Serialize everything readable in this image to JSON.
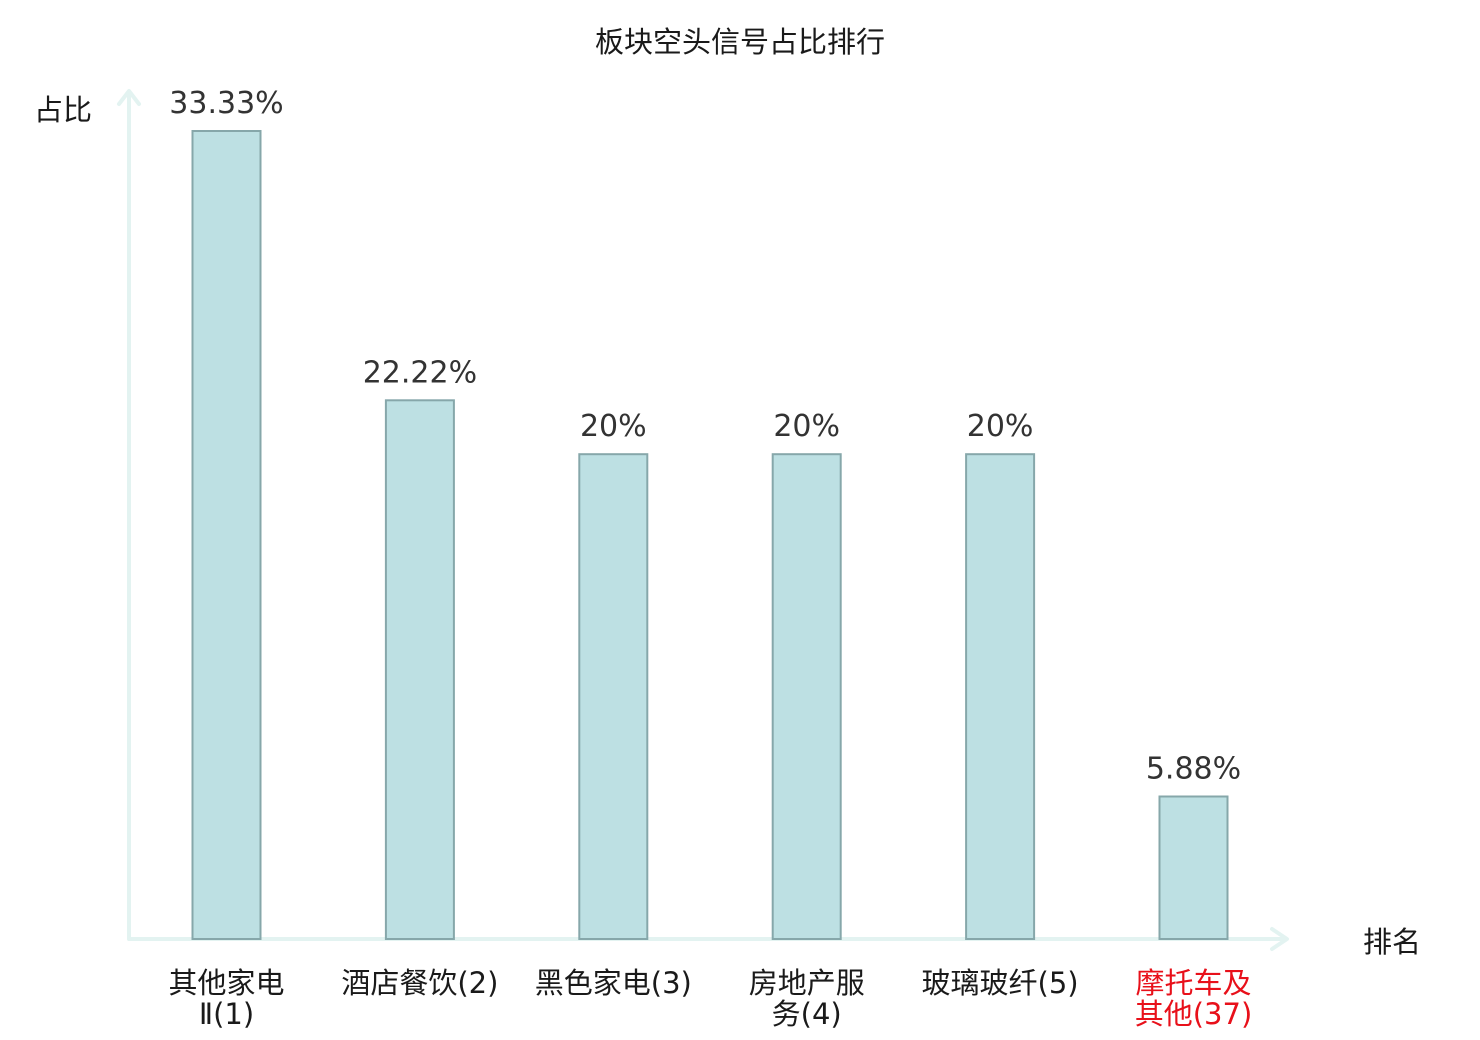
{
  "chart_data": {
    "type": "bar",
    "title": "板块空头信号占比排行",
    "ylabel": "占比",
    "xlabel": "排名",
    "ylim": [
      0,
      34
    ],
    "grid": false,
    "categories": [
      [
        "其他家电",
        "Ⅱ(1)"
      ],
      [
        "酒店餐饮(2)"
      ],
      [
        "黑色家电(3)"
      ],
      [
        "房地产服",
        "务(4)"
      ],
      [
        "玻璃玻纤(5)"
      ],
      [
        "摩托车及",
        "其他(37)"
      ]
    ],
    "values": [
      33.33,
      22.22,
      20,
      20,
      20,
      5.88
    ],
    "value_labels": [
      "33.33%",
      "22.22%",
      "20%",
      "20%",
      "20%",
      "5.88%"
    ],
    "label_colors": [
      "#1a1a1a",
      "#1a1a1a",
      "#1a1a1a",
      "#1a1a1a",
      "#1a1a1a",
      "#e8101a"
    ],
    "colors": {
      "bar_fill": "#bde0e3",
      "bar_stroke": "#86a7aa",
      "axis": "#e3f3f1"
    }
  }
}
